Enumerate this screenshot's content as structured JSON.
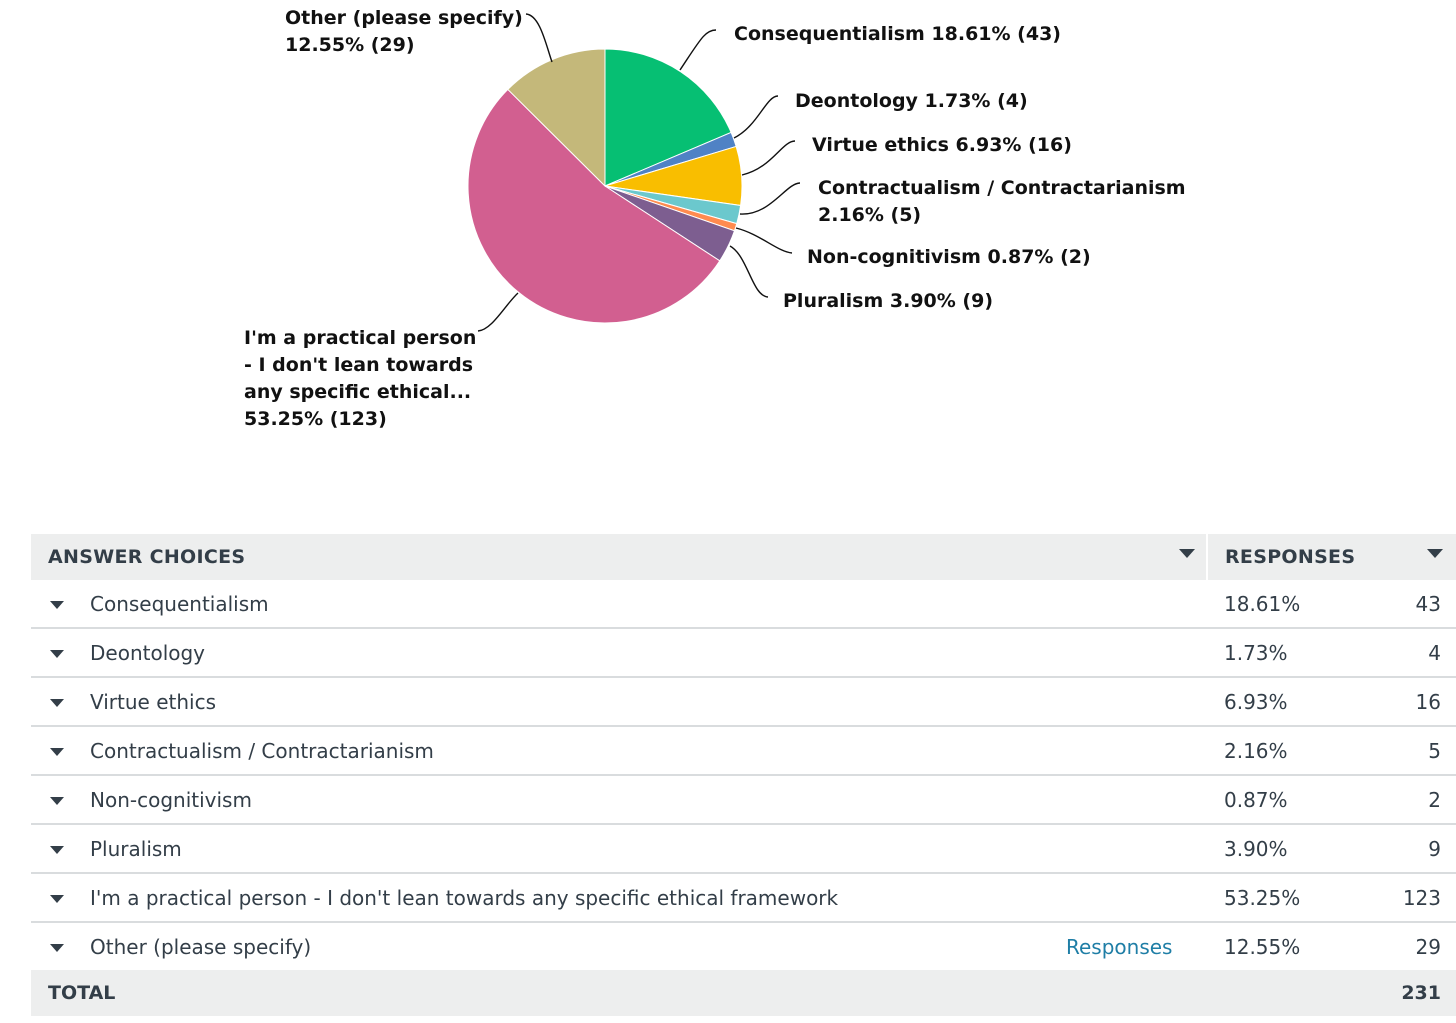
{
  "chart_data": {
    "type": "pie",
    "title": "",
    "slices": [
      {
        "name": "Consequentialism",
        "percent": 18.61,
        "count": 43,
        "color": "#06bf73",
        "label_lines": [
          "Consequentialism 18.61% (43)"
        ]
      },
      {
        "name": "Deontology",
        "percent": 1.73,
        "count": 4,
        "color": "#4f82c5",
        "label_lines": [
          "Deontology 1.73% (4)"
        ]
      },
      {
        "name": "Virtue ethics",
        "percent": 6.93,
        "count": 16,
        "color": "#f9be00",
        "label_lines": [
          "Virtue ethics 6.93% (16)"
        ]
      },
      {
        "name": "Contractualism / Contractarianism",
        "percent": 2.16,
        "count": 5,
        "color": "#6bc8cd",
        "label_lines": [
          "Contractualism / Contractarianism",
          "2.16% (5)"
        ]
      },
      {
        "name": "Non-cognitivism",
        "percent": 0.87,
        "count": 2,
        "color": "#ff8b4f",
        "label_lines": [
          "Non-cognitivism 0.87% (2)"
        ]
      },
      {
        "name": "Pluralism",
        "percent": 3.9,
        "count": 9,
        "color": "#7d5e90",
        "label_lines": [
          "Pluralism 3.90% (9)"
        ]
      },
      {
        "name": "I'm a practical person - I don't lean towards any specific ethical framework",
        "percent": 53.25,
        "count": 123,
        "color": "#d25f90",
        "label_lines": [
          "I'm a practical person",
          "- I don't lean towards",
          "any specific ethical...",
          "53.25% (123)"
        ]
      },
      {
        "name": "Other (please specify)",
        "percent": 12.55,
        "count": 29,
        "color": "#c4b87a",
        "label_lines": [
          "Other (please specify)",
          "12.55% (29)"
        ]
      }
    ]
  },
  "table": {
    "header_answer": "ANSWER CHOICES",
    "header_responses": "RESPONSES",
    "rows": [
      {
        "label": "Consequentialism",
        "pct": "18.61%",
        "count": "43"
      },
      {
        "label": "Deontology",
        "pct": "1.73%",
        "count": "4"
      },
      {
        "label": "Virtue ethics",
        "pct": "6.93%",
        "count": "16"
      },
      {
        "label": "Contractualism / Contractarianism",
        "pct": "2.16%",
        "count": "5"
      },
      {
        "label": "Non-cognitivism",
        "pct": "0.87%",
        "count": "2"
      },
      {
        "label": "Pluralism",
        "pct": "3.90%",
        "count": "9"
      },
      {
        "label": "I'm a practical person - I don't lean towards any specific ethical framework",
        "pct": "53.25%",
        "count": "123"
      },
      {
        "label": "Other (please specify)",
        "pct": "12.55%",
        "count": "29",
        "link": "Responses"
      }
    ],
    "total_label": "TOTAL",
    "total_value": "231"
  }
}
